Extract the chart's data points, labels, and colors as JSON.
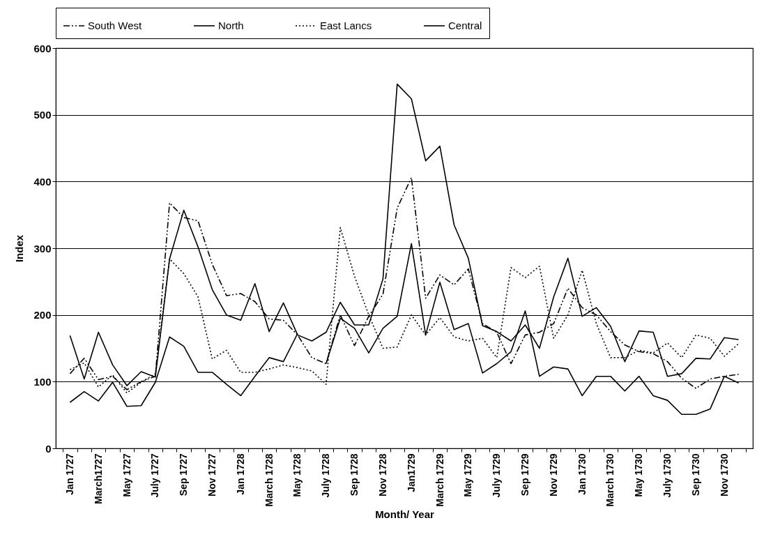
{
  "chart_data": {
    "type": "line",
    "xlabel": "Month/ Year",
    "ylabel": "Index",
    "categories": [
      "Jan 1727",
      null,
      "March1727",
      null,
      "May 1727",
      null,
      "July 1727",
      null,
      "Sep 1727",
      null,
      "Nov 1727",
      null,
      "Jan 1728",
      null,
      "March 1728",
      null,
      "May 1728",
      null,
      "July 1728",
      null,
      "Sep 1728",
      null,
      "Nov 1728",
      null,
      "Jan1729",
      null,
      "March 1729",
      null,
      "May 1729",
      null,
      "July 1729",
      null,
      "Sep 1729",
      null,
      "Nov 1729",
      null,
      "Jan 1730",
      null,
      "March 1730",
      null,
      "May 1730",
      null,
      "July 1730",
      null,
      "Sep 1730",
      null,
      "Nov 1730",
      null
    ],
    "series": [
      {
        "name": "South West",
        "color": "#000000",
        "line_style": "dashed",
        "values": [
          112,
          135,
          103,
          108,
          88,
          100,
          108,
          368,
          346,
          341,
          276,
          229,
          232,
          220,
          194,
          192,
          170,
          136,
          127,
          200,
          154,
          198,
          231,
          360,
          406,
          225,
          260,
          245,
          269,
          187,
          174,
          127,
          170,
          174,
          187,
          240,
          211,
          200,
          175,
          155,
          145,
          142,
          130,
          105,
          90,
          104,
          108,
          111
        ]
      },
      {
        "name": "North",
        "color": "#000000",
        "line_style": "solid",
        "values": [
          169,
          104,
          174,
          125,
          94,
          115,
          107,
          284,
          357,
          302,
          238,
          200,
          192,
          247,
          175,
          218,
          170,
          161,
          174,
          219,
          185,
          185,
          254,
          546,
          524,
          431,
          453,
          335,
          285,
          184,
          175,
          161,
          185,
          150,
          227,
          285,
          198,
          211,
          183,
          130,
          176,
          174,
          108,
          112,
          135,
          134,
          166,
          163
        ]
      },
      {
        "name": "East Lancs",
        "color": "#000000",
        "line_style": "dotted",
        "values": [
          118,
          128,
          92,
          110,
          83,
          99,
          112,
          284,
          262,
          227,
          134,
          147,
          114,
          114,
          119,
          125,
          121,
          116,
          96,
          331,
          258,
          200,
          150,
          152,
          200,
          170,
          196,
          167,
          161,
          165,
          136,
          271,
          256,
          273,
          165,
          200,
          267,
          187,
          136,
          136,
          147,
          143,
          158,
          136,
          170,
          165,
          138,
          157
        ]
      },
      {
        "name": "Central",
        "color": "#000000",
        "line_style": "solid",
        "values": [
          69,
          85,
          71,
          99,
          63,
          64,
          99,
          167,
          153,
          114,
          114,
          96,
          79,
          108,
          136,
          130,
          172,
          null,
          127,
          195,
          180,
          143,
          180,
          198,
          307,
          170,
          249,
          178,
          187,
          113,
          127,
          145,
          206,
          108,
          122,
          119,
          79,
          108,
          108,
          86,
          108,
          79,
          72,
          51,
          51,
          59,
          108,
          98
        ]
      }
    ],
    "ylim": [
      0,
      600
    ],
    "yticks": [
      0,
      100,
      200,
      300,
      400,
      500,
      600
    ],
    "grid": "y",
    "legend": "top",
    "marker": "none"
  }
}
